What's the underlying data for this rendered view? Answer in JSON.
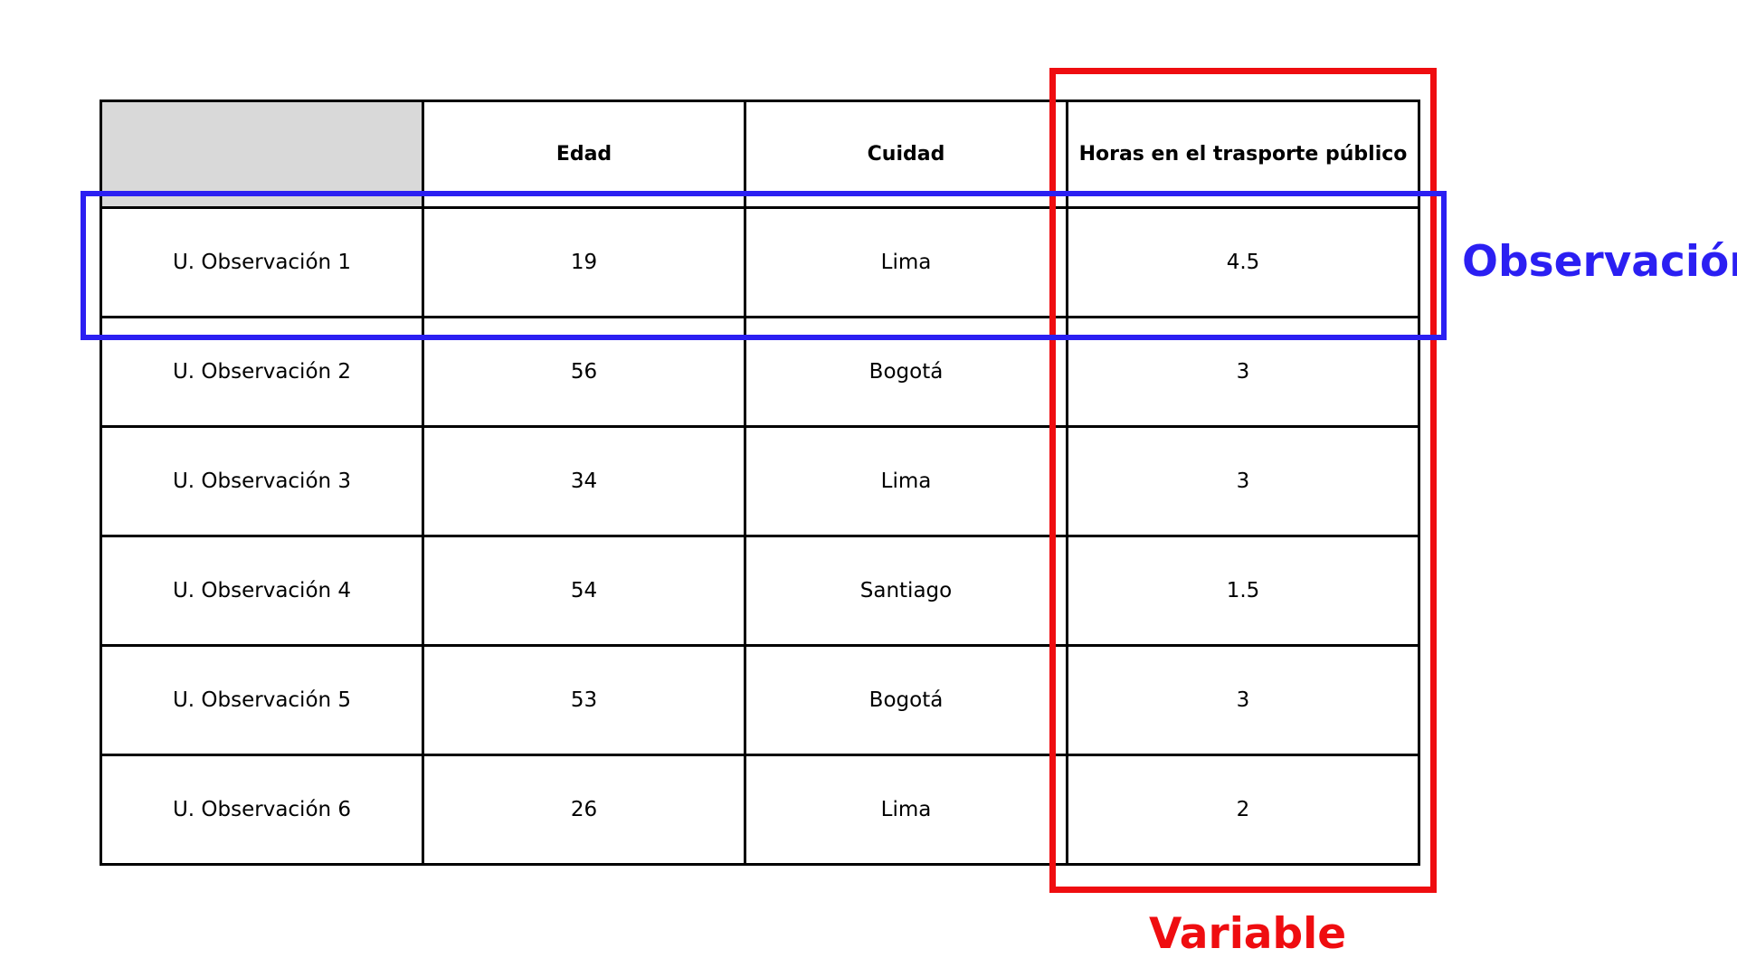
{
  "table": {
    "headers": [
      "",
      "Edad",
      "Cuidad",
      "Horas en el trasporte público"
    ],
    "rows": [
      [
        "U. Observación 1",
        "19",
        "Lima",
        "4.5"
      ],
      [
        "U. Observación 2",
        "56",
        "Bogotá",
        "3"
      ],
      [
        "U. Observación 3",
        "34",
        "Lima",
        "3"
      ],
      [
        "U. Observación 4",
        "54",
        "Santiago",
        "1.5"
      ],
      [
        "U. Observación 5",
        "53",
        "Bogotá",
        "3"
      ],
      [
        "U. Observación 6",
        "26",
        "Lima",
        "2"
      ]
    ]
  },
  "annotations": {
    "row_label": "Observación",
    "column_label": "Variable",
    "row_color": "#2b1ff2",
    "column_color": "#ef0d10",
    "corner_fill": "#d9d9d9"
  }
}
